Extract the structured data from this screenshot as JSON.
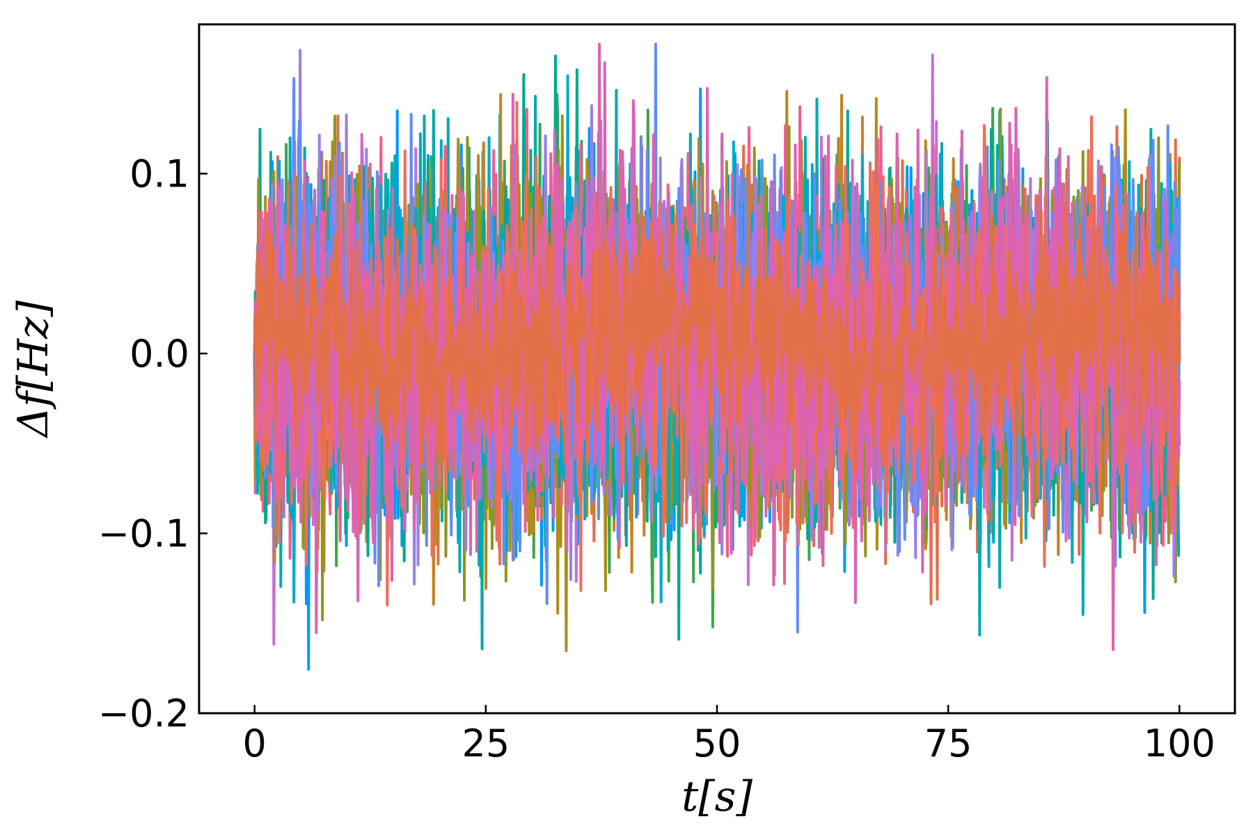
{
  "chart_data": {
    "type": "line",
    "title": "",
    "xlabel": "t[s]",
    "ylabel": "Δf[Hz]",
    "xlim": [
      -6,
      106
    ],
    "ylim": [
      -0.2,
      0.183
    ],
    "xticks": [
      0,
      25,
      50,
      75,
      100
    ],
    "xtick_labels": [
      "0",
      "25",
      "50",
      "75",
      "100"
    ],
    "yticks": [
      -0.2,
      -0.1,
      0.0,
      0.1
    ],
    "ytick_labels": [
      "−0.2",
      "−0.1",
      "0.0",
      "0.1"
    ],
    "grid": false,
    "legend": "none",
    "sampling": {
      "t_start": 0,
      "t_end": 100,
      "points_per_series": 1200
    },
    "series": [
      {
        "color": "#009AFA",
        "seed": 11,
        "mean": 0.002,
        "std": 0.045,
        "drift_amp": 0.01
      },
      {
        "color": "#E36F47",
        "seed": 23,
        "mean": 0.003,
        "std": 0.04,
        "drift_amp": 0.012
      },
      {
        "color": "#3EA44E",
        "seed": 37,
        "mean": 0.001,
        "std": 0.044,
        "drift_amp": 0.011
      },
      {
        "color": "#C371D2",
        "seed": 41,
        "mean": 0.002,
        "std": 0.043,
        "drift_amp": 0.01
      },
      {
        "color": "#AC8E18",
        "seed": 53,
        "mean": 0.0,
        "std": 0.045,
        "drift_amp": 0.012
      },
      {
        "color": "#00AAAE",
        "seed": 67,
        "mean": 0.001,
        "std": 0.046,
        "drift_amp": 0.01
      },
      {
        "color": "#ED5E93",
        "seed": 71,
        "mean": 0.002,
        "std": 0.044,
        "drift_amp": 0.013
      },
      {
        "color": "#C68225",
        "seed": 83,
        "mean": 0.001,
        "std": 0.042,
        "drift_amp": 0.011
      },
      {
        "color": "#00A98D",
        "seed": 97,
        "mean": 0.0,
        "std": 0.044,
        "drift_amp": 0.01
      },
      {
        "color": "#8E971E",
        "seed": 103,
        "mean": 0.001,
        "std": 0.045,
        "drift_amp": 0.012
      },
      {
        "color": "#00A9CD",
        "seed": 109,
        "mean": 0.002,
        "std": 0.043,
        "drift_amp": 0.01
      },
      {
        "color": "#9B7FE9",
        "seed": 127,
        "mean": 0.001,
        "std": 0.044,
        "drift_amp": 0.011
      },
      {
        "color": "#618DF6",
        "seed": 131,
        "mean": 0.002,
        "std": 0.045,
        "drift_amp": 0.012
      },
      {
        "color": "#F16C5A",
        "seed": 139,
        "mean": 0.001,
        "std": 0.044,
        "drift_amp": 0.01
      },
      {
        "color": "#DC63B1",
        "seed": 149,
        "mean": 0.001,
        "std": 0.047,
        "drift_amp": 0.013
      },
      {
        "color": "#E36F47",
        "seed": 157,
        "mean": 0.006,
        "std": 0.028,
        "drift_amp": 0.012
      }
    ]
  }
}
